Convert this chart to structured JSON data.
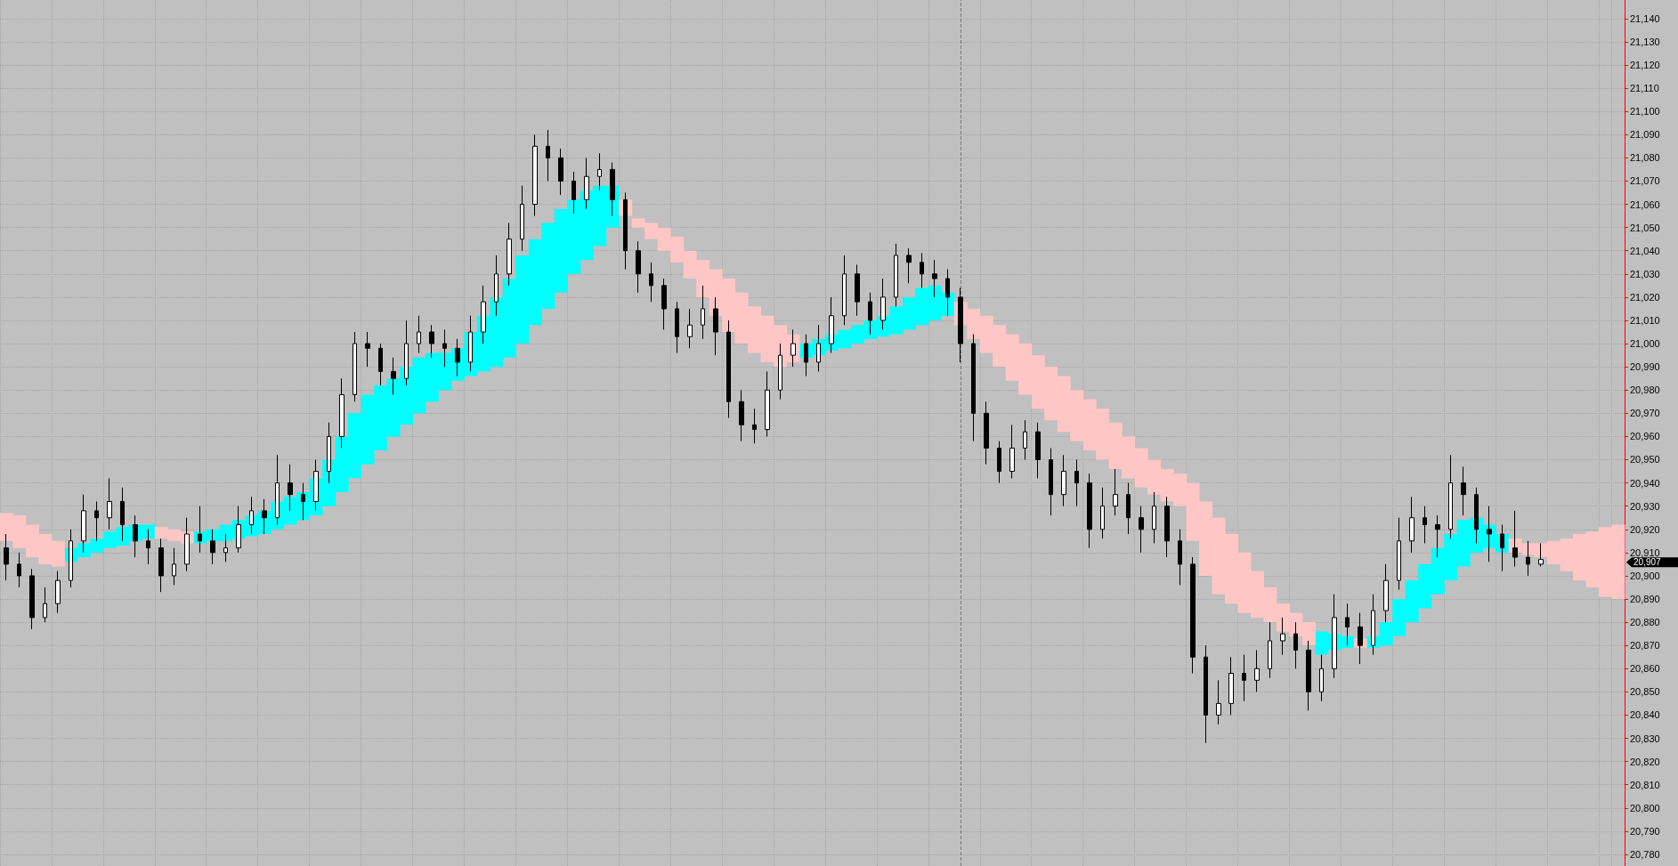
{
  "chart_data": {
    "type": "candlestick",
    "categories": [
      null,
      null,
      null,
      null,
      null,
      null,
      null,
      null,
      null,
      null,
      null,
      null,
      null,
      null,
      null,
      null,
      null,
      null,
      null,
      null,
      null,
      null,
      null,
      null,
      null,
      null,
      null,
      null,
      null,
      null,
      null,
      null,
      null,
      null,
      null,
      null,
      null,
      null,
      null,
      null,
      null,
      null,
      null,
      null,
      null,
      null,
      null,
      null,
      null,
      null,
      null,
      null,
      null,
      null,
      null,
      null,
      null,
      null,
      null,
      null,
      null,
      null,
      null,
      null,
      null,
      null,
      null,
      null,
      null,
      null,
      null,
      null,
      null,
      null,
      null,
      null,
      null,
      null,
      null,
      null,
      null,
      null,
      null,
      null,
      null,
      null,
      null,
      null,
      null,
      null,
      null,
      null,
      null,
      null,
      null,
      null,
      null,
      null,
      null,
      null,
      null,
      null,
      null,
      null,
      null,
      null,
      null,
      null,
      null,
      null,
      null,
      null,
      null,
      null,
      null,
      null,
      null,
      null,
      null,
      null,
      null,
      null,
      null,
      null,
      null,
      null
    ],
    "series": [
      {
        "color": "#000000",
        "ohlc": [
          [
            20912,
            20918,
            20898,
            20905
          ],
          [
            20905,
            20910,
            20895,
            20900
          ],
          [
            20900,
            20903,
            20877,
            20882
          ],
          [
            20882,
            20895,
            20880,
            20888
          ],
          [
            20888,
            20902,
            20884,
            20898
          ],
          [
            20898,
            20920,
            20895,
            20915
          ],
          [
            20915,
            20935,
            20910,
            20928
          ],
          [
            20928,
            20932,
            20915,
            20925
          ],
          [
            20925,
            20942,
            20920,
            20932
          ],
          [
            20932,
            20938,
            20915,
            20922
          ],
          [
            20922,
            20926,
            20908,
            20915
          ],
          [
            20915,
            20920,
            20905,
            20912
          ],
          [
            20912,
            20916,
            20893,
            20900
          ],
          [
            20900,
            20912,
            20896,
            20905
          ],
          [
            20905,
            20925,
            20902,
            20918
          ],
          [
            20918,
            20930,
            20910,
            20915
          ],
          [
            20915,
            20920,
            20905,
            20910
          ],
          [
            20910,
            20918,
            20906,
            20912
          ],
          [
            20912,
            20930,
            20910,
            20922
          ],
          [
            20922,
            20934,
            20918,
            20928
          ],
          [
            20928,
            20933,
            20918,
            20925
          ],
          [
            20925,
            20952,
            20922,
            20940
          ],
          [
            20940,
            20948,
            20928,
            20935
          ],
          [
            20935,
            20940,
            20924,
            20932
          ],
          [
            20932,
            20950,
            20928,
            20945
          ],
          [
            20945,
            20966,
            20940,
            20960
          ],
          [
            20960,
            20985,
            20955,
            20978
          ],
          [
            20978,
            21005,
            20975,
            21000
          ],
          [
            21000,
            21005,
            20990,
            20998
          ],
          [
            20998,
            21000,
            20982,
            20988
          ],
          [
            20988,
            20994,
            20978,
            20985
          ],
          [
            20985,
            21010,
            20982,
            21000
          ],
          [
            21000,
            21012,
            20996,
            21005
          ],
          [
            21005,
            21008,
            20994,
            21000
          ],
          [
            21000,
            21006,
            20990,
            20998
          ],
          [
            20998,
            21002,
            20986,
            20992
          ],
          [
            20992,
            21012,
            20988,
            21005
          ],
          [
            21005,
            21025,
            21000,
            21018
          ],
          [
            21018,
            21038,
            21012,
            21030
          ],
          [
            21030,
            21052,
            21025,
            21045
          ],
          [
            21045,
            21068,
            21040,
            21060
          ],
          [
            21060,
            21090,
            21055,
            21085
          ],
          [
            21085,
            21092,
            21070,
            21080
          ],
          [
            21080,
            21084,
            21064,
            21070
          ],
          [
            21070,
            21074,
            21056,
            21062
          ],
          [
            21062,
            21080,
            21058,
            21072
          ],
          [
            21072,
            21082,
            21066,
            21075
          ],
          [
            21075,
            21078,
            21055,
            21062
          ],
          [
            21062,
            21065,
            21032,
            21040
          ],
          [
            21040,
            21044,
            21022,
            21030
          ],
          [
            21030,
            21035,
            21018,
            21025
          ],
          [
            21025,
            21028,
            21006,
            21015
          ],
          [
            21015,
            21018,
            20996,
            21003
          ],
          [
            21003,
            21015,
            20998,
            21008
          ],
          [
            21008,
            21025,
            21002,
            21015
          ],
          [
            21015,
            21020,
            20995,
            21005
          ],
          [
            21005,
            21010,
            20968,
            20975
          ],
          [
            20975,
            20980,
            20958,
            20965
          ],
          [
            20965,
            20972,
            20957,
            20963
          ],
          [
            20963,
            20988,
            20960,
            20980
          ],
          [
            20980,
            21000,
            20976,
            20995
          ],
          [
            20995,
            21006,
            20990,
            21000
          ],
          [
            21000,
            21004,
            20986,
            20992
          ],
          [
            20992,
            21008,
            20988,
            21000
          ],
          [
            21000,
            21020,
            20996,
            21012
          ],
          [
            21012,
            21038,
            21008,
            21030
          ],
          [
            21030,
            21034,
            21012,
            21018
          ],
          [
            21018,
            21022,
            21004,
            21010
          ],
          [
            21010,
            21028,
            21006,
            21020
          ],
          [
            21020,
            21043,
            21016,
            21038
          ],
          [
            21038,
            21041,
            21026,
            21035
          ],
          [
            21035,
            21039,
            21024,
            21030
          ],
          [
            21030,
            21036,
            21020,
            21028
          ],
          [
            21028,
            21032,
            21012,
            21020
          ],
          [
            21020,
            21024,
            20992,
            21000
          ],
          [
            21000,
            21004,
            20958,
            20970
          ],
          [
            20970,
            20975,
            20948,
            20955
          ],
          [
            20955,
            20958,
            20940,
            20945
          ],
          [
            20945,
            20965,
            20942,
            20955
          ],
          [
            20955,
            20967,
            20950,
            20962
          ],
          [
            20962,
            20966,
            20942,
            20950
          ],
          [
            20950,
            20955,
            20926,
            20935
          ],
          [
            20935,
            20952,
            20930,
            20945
          ],
          [
            20945,
            20950,
            20930,
            20940
          ],
          [
            20940,
            20944,
            20912,
            20920
          ],
          [
            20920,
            20938,
            20916,
            20930
          ],
          [
            20930,
            20946,
            20926,
            20935
          ],
          [
            20935,
            20940,
            20918,
            20925
          ],
          [
            20925,
            20930,
            20910,
            20920
          ],
          [
            20920,
            20936,
            20914,
            20930
          ],
          [
            20930,
            20934,
            20908,
            20915
          ],
          [
            20915,
            20920,
            20896,
            20905
          ],
          [
            20905,
            20908,
            20858,
            20865
          ],
          [
            20865,
            20870,
            20828,
            20840
          ],
          [
            20840,
            20855,
            20836,
            20845
          ],
          [
            20845,
            20865,
            20840,
            20858
          ],
          [
            20858,
            20866,
            20846,
            20855
          ],
          [
            20855,
            20868,
            20850,
            20860
          ],
          [
            20860,
            20880,
            20856,
            20872
          ],
          [
            20872,
            20882,
            20866,
            20875
          ],
          [
            20875,
            20880,
            20860,
            20868
          ],
          [
            20868,
            20872,
            20842,
            20850
          ],
          [
            20850,
            20866,
            20846,
            20860
          ],
          [
            20860,
            20892,
            20856,
            20882
          ],
          [
            20882,
            20888,
            20870,
            20878
          ],
          [
            20878,
            20884,
            20862,
            20870
          ],
          [
            20870,
            20892,
            20866,
            20885
          ],
          [
            20885,
            20905,
            20880,
            20898
          ],
          [
            20898,
            20925,
            20894,
            20915
          ],
          [
            20915,
            20934,
            20910,
            20925
          ],
          [
            20925,
            20930,
            20914,
            20922
          ],
          [
            20922,
            20926,
            20908,
            20920
          ],
          [
            20920,
            20952,
            20916,
            20940
          ],
          [
            20940,
            20947,
            20926,
            20935
          ],
          [
            20935,
            20938,
            20914,
            20920
          ],
          [
            20920,
            20930,
            20906,
            20918
          ],
          [
            20918,
            20922,
            20902,
            20912
          ],
          [
            20912,
            20928,
            20904,
            20908
          ],
          [
            20908,
            20915,
            20900,
            20905
          ],
          [
            20905,
            20914,
            20904,
            20907
          ],
          null,
          null,
          null,
          null,
          null,
          null
        ]
      },
      {
        "type": "bar",
        "color": "#00ffff",
        "values": [
          null,
          null,
          null,
          null,
          null,
          6,
          6,
          6,
          7,
          8,
          7,
          6,
          null,
          null,
          null,
          5,
          5,
          7,
          8,
          9,
          10,
          12,
          12,
          12,
          16,
          20,
          24,
          28,
          30,
          28,
          25,
          25,
          24,
          21,
          16,
          14,
          19,
          24,
          30,
          34,
          38,
          37,
          37,
          36,
          32,
          30,
          26,
          18,
          null,
          null,
          null,
          null,
          null,
          null,
          null,
          null,
          null,
          null,
          null,
          null,
          null,
          null,
          6,
          7,
          7,
          8,
          8,
          8,
          9,
          12,
          14,
          16,
          15,
          10,
          null,
          null,
          null,
          null,
          null,
          null,
          null,
          null,
          null,
          null,
          null,
          null,
          null,
          null,
          null,
          null,
          null,
          null,
          null,
          null,
          null,
          null,
          null,
          null,
          null,
          null,
          null,
          null,
          10,
          7,
          5,
          null,
          5,
          10,
          16,
          18,
          19,
          20,
          20,
          20,
          15,
          10,
          8,
          null,
          null,
          null,
          null,
          null,
          null,
          null,
          null,
          null
        ],
        "base": [
          null,
          null,
          null,
          null,
          null,
          20906,
          20908,
          20910,
          20912,
          20913,
          20915,
          20916,
          null,
          null,
          null,
          20914,
          20915,
          20915,
          20916,
          20917,
          20918,
          20920,
          20922,
          20924,
          20926,
          20930,
          20936,
          20942,
          20948,
          20954,
          20960,
          20965,
          20970,
          20975,
          20980,
          20984,
          20986,
          20988,
          20990,
          20994,
          21000,
          21008,
          21015,
          21022,
          21030,
          21036,
          21042,
          21050,
          null,
          null,
          null,
          null,
          null,
          null,
          null,
          null,
          null,
          null,
          null,
          null,
          null,
          null,
          20994,
          20995,
          20997,
          20998,
          21000,
          21002,
          21003,
          21004,
          21006,
          21008,
          21010,
          21012,
          null,
          null,
          null,
          null,
          null,
          null,
          null,
          null,
          null,
          null,
          null,
          null,
          null,
          null,
          null,
          null,
          null,
          null,
          null,
          null,
          null,
          null,
          null,
          null,
          null,
          null,
          null,
          null,
          20866,
          20868,
          20869,
          null,
          20869,
          20870,
          20874,
          20880,
          20886,
          20892,
          20898,
          20904,
          20910,
          20912,
          20910,
          null,
          null,
          null,
          null,
          null,
          null,
          null,
          null,
          null
        ]
      },
      {
        "type": "bar",
        "color": "#ffc6c6",
        "values": [
          12,
          14,
          14,
          13,
          11,
          null,
          null,
          null,
          null,
          null,
          null,
          null,
          5,
          5,
          5,
          null,
          null,
          null,
          null,
          null,
          null,
          null,
          null,
          null,
          null,
          null,
          null,
          null,
          null,
          null,
          null,
          null,
          null,
          null,
          null,
          null,
          null,
          null,
          null,
          null,
          null,
          null,
          null,
          null,
          null,
          null,
          null,
          null,
          7,
          4,
          7,
          10,
          11,
          12,
          16,
          20,
          23,
          22,
          20,
          20,
          18,
          12,
          null,
          null,
          null,
          null,
          null,
          null,
          null,
          null,
          null,
          null,
          null,
          null,
          10,
          13,
          16,
          18,
          20,
          22,
          23,
          23,
          24,
          22,
          22,
          22,
          20,
          18,
          17,
          15,
          14,
          14,
          25,
          32,
          33,
          30,
          26,
          20,
          15,
          12,
          10,
          10,
          null,
          null,
          null,
          4,
          null,
          null,
          null,
          null,
          null,
          null,
          null,
          null,
          null,
          null,
          null,
          6,
          5,
          6,
          10,
          14,
          20,
          24,
          30,
          32
        ],
        "base": [
          20915,
          20912,
          20908,
          20905,
          20904,
          null,
          null,
          null,
          null,
          null,
          null,
          null,
          20916,
          20915,
          20914,
          null,
          null,
          null,
          null,
          null,
          null,
          null,
          null,
          null,
          null,
          null,
          null,
          null,
          null,
          null,
          null,
          null,
          null,
          null,
          null,
          null,
          null,
          null,
          null,
          null,
          null,
          null,
          null,
          null,
          null,
          null,
          null,
          null,
          21055,
          21050,
          21045,
          21040,
          21035,
          21028,
          21020,
          21012,
          21005,
          21000,
          20996,
          20992,
          20990,
          20992,
          null,
          null,
          null,
          null,
          null,
          null,
          null,
          null,
          null,
          null,
          null,
          null,
          21008,
          21002,
          20996,
          20990,
          20984,
          20978,
          20972,
          20967,
          20962,
          20958,
          20954,
          20950,
          20946,
          20942,
          20938,
          20935,
          20932,
          20930,
          20915,
          20900,
          20892,
          20888,
          20884,
          20882,
          20880,
          20876,
          20874,
          20870,
          null,
          null,
          null,
          20869,
          null,
          null,
          null,
          null,
          null,
          null,
          null,
          null,
          null,
          null,
          null,
          20910,
          20909,
          20908,
          20905,
          20902,
          20898,
          20895,
          20891,
          20890
        ]
      }
    ],
    "ylim": [
      20775,
      21148
    ],
    "yticks": [
      {
        "value": 20780,
        "label": "20,780"
      },
      {
        "value": 20790,
        "label": "20,790"
      },
      {
        "value": 20800,
        "label": "20,800"
      },
      {
        "value": 20810,
        "label": "20,810"
      },
      {
        "value": 20820,
        "label": "20,820"
      },
      {
        "value": 20830,
        "label": "20,830"
      },
      {
        "value": 20840,
        "label": "20,840"
      },
      {
        "value": 20850,
        "label": "20,850"
      },
      {
        "value": 20860,
        "label": "20,860"
      },
      {
        "value": 20870,
        "label": "20,870"
      },
      {
        "value": 20880,
        "label": "20,880"
      },
      {
        "value": 20890,
        "label": "20,890"
      },
      {
        "value": 20900,
        "label": "20,900"
      },
      {
        "value": 20910,
        "label": "20,910"
      },
      {
        "value": 20920,
        "label": "20,920"
      },
      {
        "value": 20930,
        "label": "20,930"
      },
      {
        "value": 20940,
        "label": "20,940"
      },
      {
        "value": 20950,
        "label": "20,950"
      },
      {
        "value": 20960,
        "label": "20,960"
      },
      {
        "value": 20970,
        "label": "20,970"
      },
      {
        "value": 20980,
        "label": "20,980"
      },
      {
        "value": 20990,
        "label": "20,990"
      },
      {
        "value": 21000,
        "label": "21,000"
      },
      {
        "value": 21010,
        "label": "21,010"
      },
      {
        "value": 21020,
        "label": "21,020"
      },
      {
        "value": 21030,
        "label": "21,030"
      },
      {
        "value": 21040,
        "label": "21,040"
      },
      {
        "value": 21050,
        "label": "21,050"
      },
      {
        "value": 21060,
        "label": "21,060"
      },
      {
        "value": 21070,
        "label": "21,070"
      },
      {
        "value": 21080,
        "label": "21,080"
      },
      {
        "value": 21090,
        "label": "21,090"
      },
      {
        "value": 21100,
        "label": "21,100"
      },
      {
        "value": 21110,
        "label": "21,110"
      },
      {
        "value": 21120,
        "label": "21,120"
      },
      {
        "value": 21130,
        "label": "21,130"
      },
      {
        "value": 21140,
        "label": "21,140"
      }
    ],
    "annotations": [
      "20,907"
    ],
    "grid": true,
    "tick_labels": "y"
  }
}
